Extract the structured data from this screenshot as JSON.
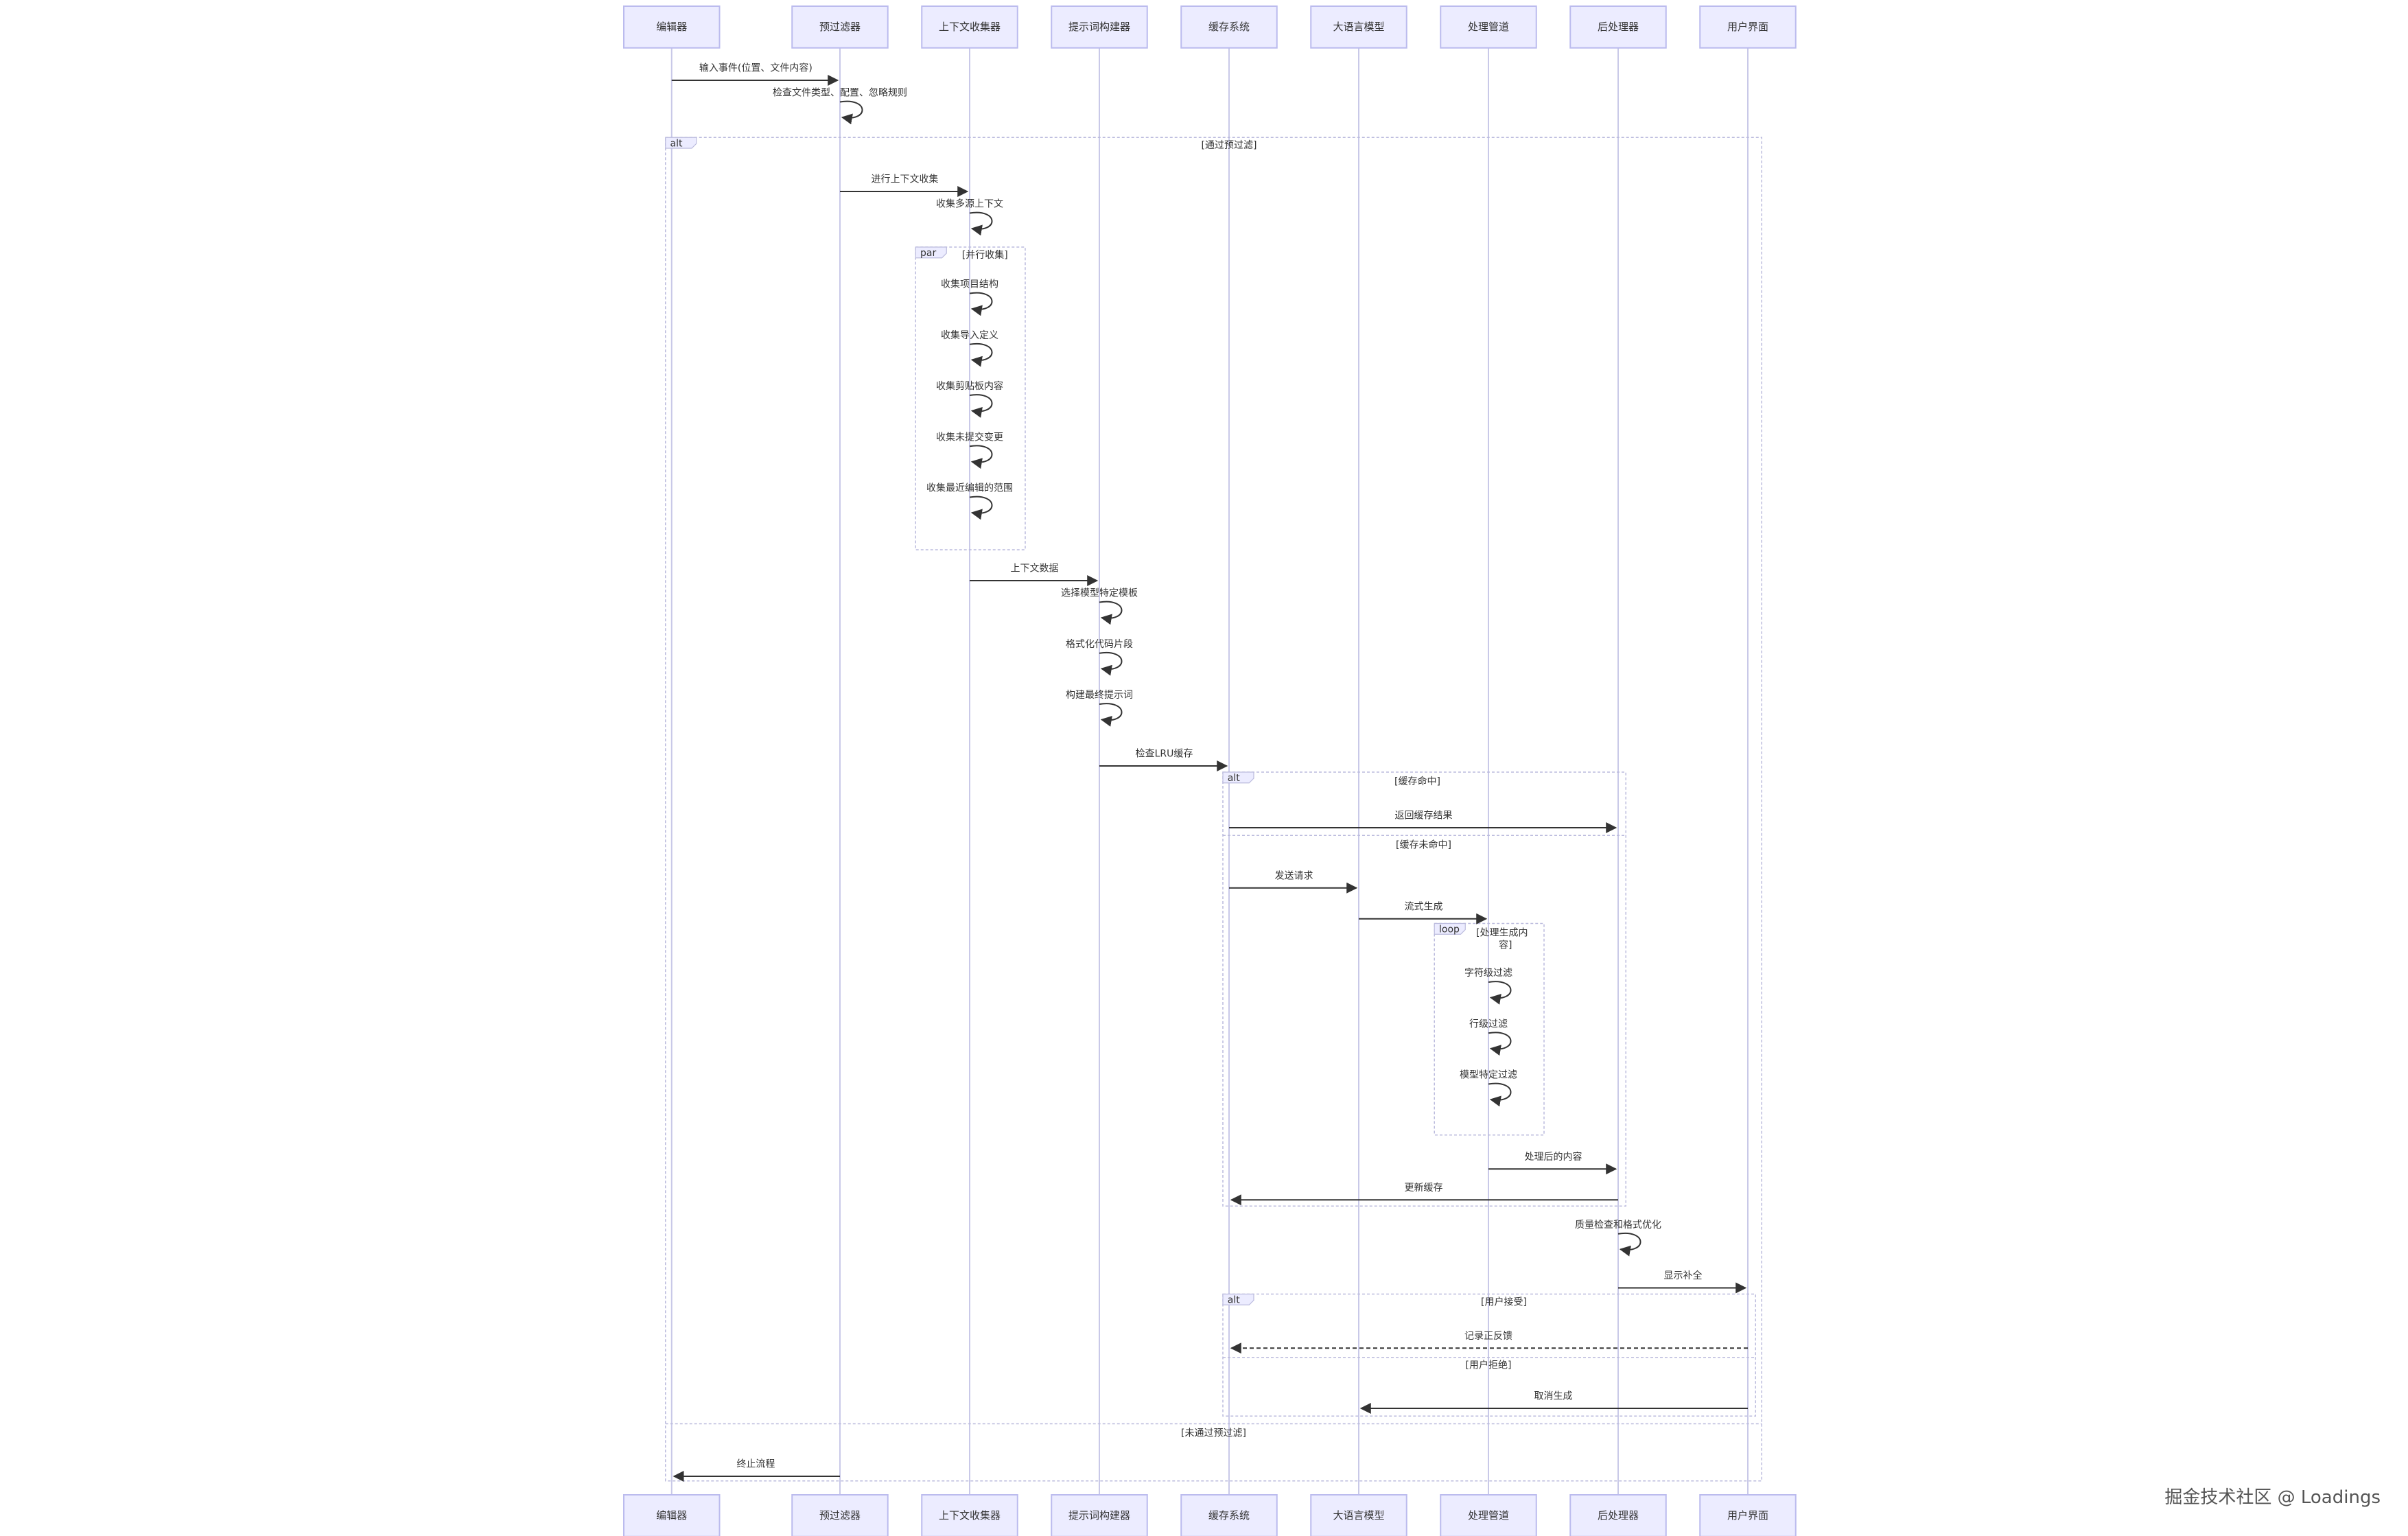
{
  "participants": [
    {
      "id": "editor",
      "label": "编辑器"
    },
    {
      "id": "prefilter",
      "label": "预过滤器"
    },
    {
      "id": "context_collector",
      "label": "上下文收集器"
    },
    {
      "id": "prompt_builder",
      "label": "提示词构建器"
    },
    {
      "id": "cache",
      "label": "缓存系统"
    },
    {
      "id": "llm",
      "label": "大语言模型"
    },
    {
      "id": "pipeline",
      "label": "处理管道"
    },
    {
      "id": "postprocessor",
      "label": "后处理器"
    },
    {
      "id": "ui",
      "label": "用户界面"
    }
  ],
  "messages": [
    {
      "from": "editor",
      "to": "prefilter",
      "text": "输入事件(位置、文件内容)"
    },
    {
      "from": "prefilter",
      "to": "prefilter",
      "text": "检查文件类型、配置、忽略规则"
    },
    {
      "from": "prefilter",
      "to": "context_collector",
      "text": "进行上下文收集"
    },
    {
      "from": "context_collector",
      "to": "context_collector",
      "text": "收集多源上下文"
    },
    {
      "from": "context_collector",
      "to": "context_collector",
      "text": "收集项目结构"
    },
    {
      "from": "context_collector",
      "to": "context_collector",
      "text": "收集导入定义"
    },
    {
      "from": "context_collector",
      "to": "context_collector",
      "text": "收集剪贴板内容"
    },
    {
      "from": "context_collector",
      "to": "context_collector",
      "text": "收集未提交变更"
    },
    {
      "from": "context_collector",
      "to": "context_collector",
      "text": "收集最近编辑的范围"
    },
    {
      "from": "context_collector",
      "to": "prompt_builder",
      "text": "上下文数据"
    },
    {
      "from": "prompt_builder",
      "to": "prompt_builder",
      "text": "选择模型特定模板"
    },
    {
      "from": "prompt_builder",
      "to": "prompt_builder",
      "text": "格式化代码片段"
    },
    {
      "from": "prompt_builder",
      "to": "prompt_builder",
      "text": "构建最终提示词"
    },
    {
      "from": "prompt_builder",
      "to": "cache",
      "text": "检查LRU缓存"
    },
    {
      "from": "cache",
      "to": "postprocessor",
      "text": "返回缓存结果"
    },
    {
      "from": "cache",
      "to": "llm",
      "text": "发送请求"
    },
    {
      "from": "llm",
      "to": "pipeline",
      "text": "流式生成"
    },
    {
      "from": "pipeline",
      "to": "pipeline",
      "text": "字符级过滤"
    },
    {
      "from": "pipeline",
      "to": "pipeline",
      "text": "行级过滤"
    },
    {
      "from": "pipeline",
      "to": "pipeline",
      "text": "模型特定过滤"
    },
    {
      "from": "pipeline",
      "to": "postprocessor",
      "text": "处理后的内容"
    },
    {
      "from": "postprocessor",
      "to": "cache",
      "text": "更新缓存"
    },
    {
      "from": "postprocessor",
      "to": "postprocessor",
      "text": "质量检查和格式优化"
    },
    {
      "from": "postprocessor",
      "to": "ui",
      "text": "显示补全"
    },
    {
      "from": "ui",
      "to": "cache",
      "text": "记录正反馈"
    },
    {
      "from": "ui",
      "to": "llm",
      "text": "取消生成"
    },
    {
      "from": "prefilter",
      "to": "editor",
      "text": "终止流程"
    }
  ],
  "frames": [
    {
      "kind": "alt",
      "labels": [
        "[通过预过滤]",
        "[未通过预过滤]"
      ]
    },
    {
      "kind": "par",
      "labels": [
        "[并行收集]"
      ]
    },
    {
      "kind": "alt",
      "labels": [
        "[缓存命中]",
        "[缓存未命中]"
      ]
    },
    {
      "kind": "loop",
      "labels": [
        "[处理生成内",
        "容]"
      ]
    },
    {
      "kind": "alt",
      "labels": [
        "[用户接受]",
        "[用户拒绝]"
      ]
    }
  ],
  "watermark": "掘金技术社区 @ Loadings"
}
